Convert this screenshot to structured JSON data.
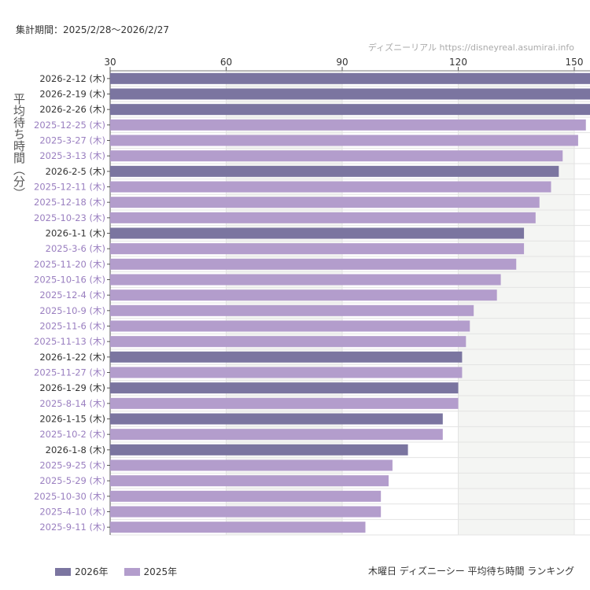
{
  "header": {
    "period": "集計期間：2025/2/28〜2026/2/27",
    "credit": "ディズニーリアル https://disneyreal.asumirai.info"
  },
  "footer": {
    "caption": "木曜日 ディズニーシー 平均待ち時間 ランキング"
  },
  "chart_data": {
    "type": "bar",
    "orientation": "horizontal",
    "ylabel": "平均待ち時間（分）",
    "xlim": [
      30,
      154
    ],
    "xticks": [
      30,
      60,
      90,
      120,
      150
    ],
    "grid": true,
    "legend_position": "bottom-left",
    "legend": [
      {
        "name": "2026年",
        "color": "#7b75a0"
      },
      {
        "name": "2025年",
        "color": "#b39dcc"
      }
    ],
    "label_colors": {
      "2026年": "#333333",
      "2025年": "#9a7fc0"
    },
    "categories": [
      "2026-2-12 (木)",
      "2026-2-19 (木)",
      "2026-2-26 (木)",
      "2025-12-25 (木)",
      "2025-3-27 (木)",
      "2025-3-13 (木)",
      "2026-2-5 (木)",
      "2025-12-11 (木)",
      "2025-12-18 (木)",
      "2025-10-23 (木)",
      "2026-1-1 (木)",
      "2025-3-6 (木)",
      "2025-11-20 (木)",
      "2025-10-16 (木)",
      "2025-12-4 (木)",
      "2025-10-9 (木)",
      "2025-11-6 (木)",
      "2025-11-13 (木)",
      "2026-1-22 (木)",
      "2025-11-27 (木)",
      "2026-1-29 (木)",
      "2025-8-14 (木)",
      "2026-1-15 (木)",
      "2025-10-2 (木)",
      "2026-1-8 (木)",
      "2025-9-25 (木)",
      "2025-5-29 (木)",
      "2025-10-30 (木)",
      "2025-4-10 (木)",
      "2025-9-11 (木)"
    ],
    "values": [
      155,
      155,
      155,
      153,
      151,
      147,
      146,
      144,
      141,
      140,
      137,
      137,
      135,
      131,
      130,
      124,
      123,
      122,
      121,
      121,
      120,
      120,
      116,
      116,
      107,
      103,
      102,
      100,
      100,
      96
    ],
    "series_of": [
      "2026年",
      "2026年",
      "2026年",
      "2025年",
      "2025年",
      "2025年",
      "2026年",
      "2025年",
      "2025年",
      "2025年",
      "2026年",
      "2025年",
      "2025年",
      "2025年",
      "2025年",
      "2025年",
      "2025年",
      "2025年",
      "2026年",
      "2025年",
      "2026年",
      "2025年",
      "2026年",
      "2025年",
      "2026年",
      "2025年",
      "2025年",
      "2025年",
      "2025年",
      "2025年"
    ]
  }
}
